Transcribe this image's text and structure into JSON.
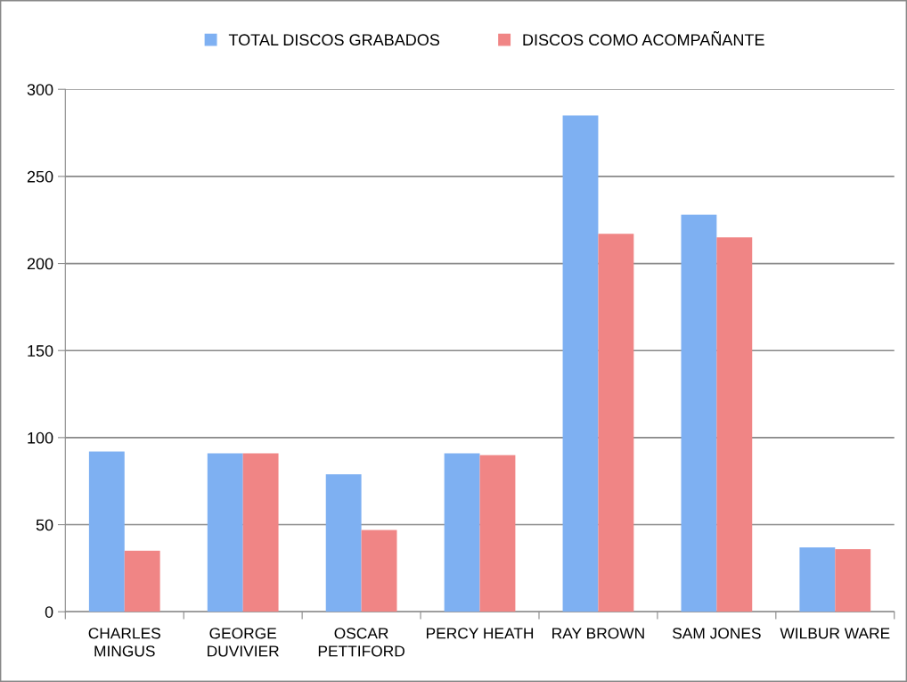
{
  "chart_data": {
    "type": "bar",
    "categories": [
      "CHARLES\nMINGUS",
      "GEORGE\nDUVIVIER",
      "OSCAR\nPETTIFORD",
      "PERCY HEATH",
      "RAY BROWN",
      "SAM JONES",
      "WILBUR WARE"
    ],
    "series": [
      {
        "name": "TOTAL DISCOS GRABADOS",
        "color": "#7eb0f2",
        "values": [
          92,
          91,
          79,
          91,
          285,
          228,
          37
        ]
      },
      {
        "name": "DISCOS COMO ACOMPAÑANTE",
        "color": "#f08585",
        "values": [
          35,
          91,
          47,
          90,
          217,
          215,
          36
        ]
      }
    ],
    "ylim": [
      0,
      300
    ],
    "yticks": [
      0,
      50,
      100,
      150,
      200,
      250,
      300
    ],
    "grid": "y",
    "legend": "top",
    "marker": "square"
  }
}
